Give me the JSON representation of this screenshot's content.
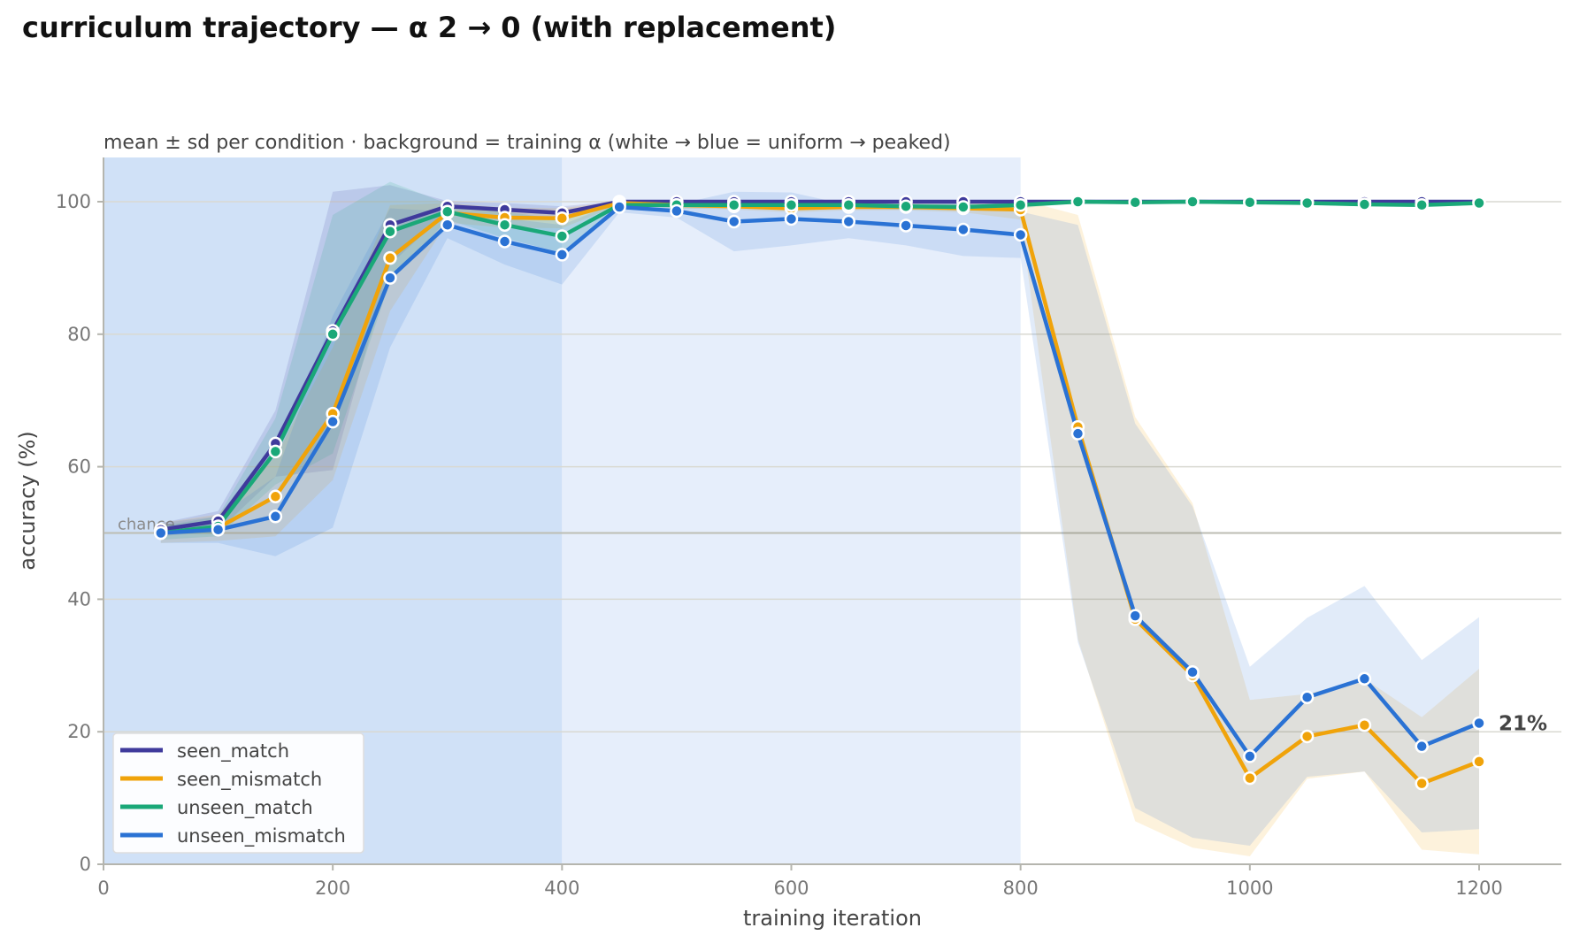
{
  "title": "curriculum trajectory — α 2 → 0 (with replacement)",
  "chart_data": {
    "type": "line",
    "subtitle": "mean ± sd per condition · background = training α (white → blue = uniform → peaked)",
    "xlabel": "training iteration",
    "ylabel": "accuracy (%)",
    "xlim": [
      0,
      1275
    ],
    "ylim": [
      0,
      105
    ],
    "xticks": [
      0,
      200,
      400,
      600,
      800,
      1000,
      1200
    ],
    "yticks": [
      0,
      20,
      40,
      60,
      80,
      100
    ],
    "grid": "horizontal",
    "legend_position": "lower-left",
    "chance": {
      "value": 50,
      "label": "chance"
    },
    "background_bands": [
      {
        "x0": 0,
        "x1": 400,
        "color": "#d0e1f7"
      },
      {
        "x0": 400,
        "x1": 800,
        "color": "#e6eefb"
      }
    ],
    "x": [
      50,
      100,
      150,
      200,
      250,
      300,
      350,
      400,
      450,
      500,
      550,
      600,
      650,
      700,
      750,
      800,
      850,
      900,
      950,
      1000,
      1050,
      1100,
      1150,
      1200
    ],
    "series": [
      {
        "name": "seen_match",
        "color": "#3f3a9c",
        "values": [
          50.5,
          51.8,
          63.5,
          80.5,
          96.5,
          99.3,
          98.8,
          98.3,
          100,
          100,
          100,
          100,
          100,
          100,
          100,
          100,
          100,
          100,
          100,
          100,
          100,
          100,
          100,
          100
        ],
        "sd": [
          1,
          1.5,
          5,
          21,
          6,
          0.8,
          1,
          1,
          0.1,
          0.1,
          0.1,
          0.1,
          0.1,
          0.1,
          0.1,
          0.1,
          0.1,
          0.1,
          0.1,
          0.1,
          0.1,
          0.1,
          0.1,
          0.1
        ]
      },
      {
        "name": "seen_mismatch",
        "color": "#f0a30a",
        "values": [
          50,
          50.8,
          55.5,
          68,
          91.5,
          98.3,
          97.6,
          97.5,
          99.8,
          99.5,
          99.3,
          99,
          99.2,
          99.2,
          99,
          98.8,
          66,
          37,
          28.5,
          13,
          19.3,
          21,
          12.2,
          15.5
        ],
        "sd": [
          1.5,
          2,
          6,
          10,
          8,
          1.5,
          1.5,
          1.5,
          0.3,
          0.5,
          0.5,
          0.6,
          0.5,
          0.5,
          0.6,
          1.5,
          32,
          30.5,
          26,
          11.8,
          6.4,
          7,
          10,
          14
        ]
      },
      {
        "name": "unseen_match",
        "color": "#1aa878",
        "values": [
          50,
          51,
          62.3,
          80,
          95.5,
          98.5,
          96.5,
          94.8,
          99.5,
          99.5,
          99.5,
          99.5,
          99.5,
          99.3,
          99.2,
          99.5,
          100,
          99.9,
          100,
          99.9,
          99.8,
          99.6,
          99.5,
          99.8
        ],
        "sd": [
          1,
          1.5,
          5,
          18,
          7.5,
          1.2,
          2,
          2.5,
          0.5,
          0.5,
          0.5,
          0.5,
          0.5,
          0.5,
          0.5,
          0.5,
          0.2,
          0.2,
          0.2,
          0.2,
          0.3,
          0.3,
          0.3,
          0.3
        ]
      },
      {
        "name": "unseen_mismatch",
        "color": "#2a72d4",
        "values": [
          50,
          50.5,
          52.5,
          66.8,
          88.5,
          96.5,
          94,
          92,
          99.2,
          98.6,
          97,
          97.4,
          97,
          96.4,
          95.8,
          95,
          65,
          37.5,
          29,
          16.3,
          25.2,
          28,
          17.8,
          21.3
        ],
        "sd": [
          1.5,
          2,
          6,
          16,
          10.5,
          2,
          3.5,
          4.5,
          0.8,
          1,
          4.5,
          4,
          2.5,
          3,
          4,
          3.5,
          31.5,
          29,
          25,
          13.5,
          12,
          14,
          13,
          16
        ]
      }
    ],
    "annotation": {
      "series": "unseen_mismatch",
      "label": "21%"
    }
  }
}
